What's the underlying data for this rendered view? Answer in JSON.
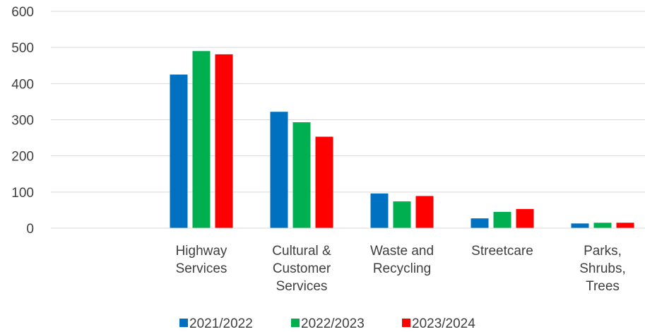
{
  "chart_data": {
    "type": "bar",
    "categories": [
      [
        "Highway",
        "Services"
      ],
      [
        "Cultural &",
        "Customer",
        "Services"
      ],
      [
        "Waste and",
        "Recycling"
      ],
      [
        "Streetcare"
      ],
      [
        "Parks,",
        "Shrubs,",
        "Trees"
      ]
    ],
    "series": [
      {
        "name": "2021/2022",
        "color": "#0070C0",
        "values": [
          425,
          322,
          96,
          27,
          13
        ]
      },
      {
        "name": "2022/2023",
        "color": "#00B050",
        "values": [
          490,
          293,
          74,
          45,
          15
        ]
      },
      {
        "name": "2023/2024",
        "color": "#FF0000",
        "values": [
          481,
          253,
          89,
          53,
          15
        ]
      }
    ],
    "yticks": [
      "0",
      "100",
      "200",
      "300",
      "400",
      "500",
      "600"
    ],
    "ylim": [
      0,
      600
    ],
    "grid": true,
    "legend": "bottom-center"
  }
}
